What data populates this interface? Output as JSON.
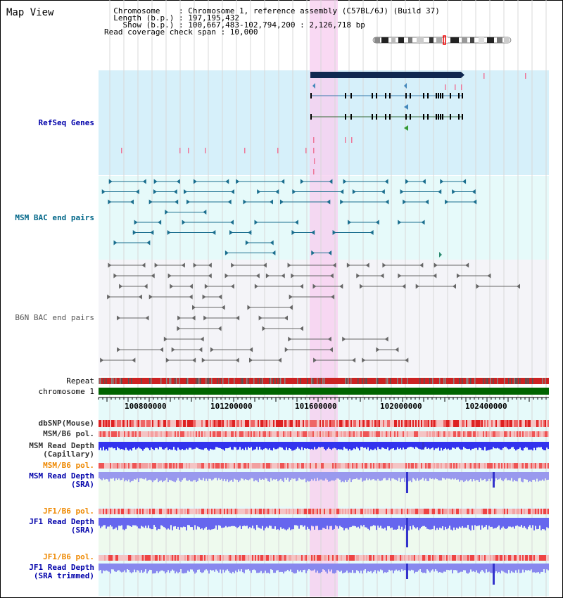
{
  "header": {
    "title": "Map View",
    "info_lines": [
      "  Chromosome    : Chromosome 1, reference assembly (C57BL/6J) (Build 37)",
      "  Length (b.p.) : 197,195,432",
      "    Show (b.p.) : 100,667,483-102,794,200 : 2,126,718 bp",
      "Read coverage check span : 10,000"
    ]
  },
  "tracks": {
    "refseq": "RefSeq Genes",
    "msm_bac": "MSM BAC end pairs",
    "b6n_bac": "B6N BAC end pairs",
    "repeat": "Repeat",
    "chromosome": "chromosome 1",
    "dbsnp": "dbSNP(Mouse)",
    "msm_b6_pol": "MSM/B6 pol.",
    "msm_depth_cap_1": "MSM Read Depth",
    "msm_depth_cap_2": "(Capillary)",
    "msm_b6_pol_2": "MSM/B6 pol.",
    "msm_depth_sra_1": "MSM Read Depth",
    "msm_depth_sra_2": "(SRA)",
    "jf1_pol_1": "JF1/B6 pol.",
    "jf1_depth_sra_1": "JF1 Read Depth",
    "jf1_depth_sra_2": "(SRA)",
    "jf1_pol_2": "JF1/B6 pol.",
    "jf1_depth_trim_1": "JF1 Read Depth",
    "jf1_depth_trim_2": "(SRA trimmed)"
  },
  "axis": {
    "ticks": [
      "100800000",
      "101200000",
      "101600000",
      "102000000",
      "102400000"
    ]
  },
  "colors": {
    "refseq_bg": "#d6f0fa",
    "msm_bg": "#e6fafa",
    "b6n_bg": "#f4f4f8",
    "highlight": "#f8d0f0",
    "chromosome_bar": "#006400",
    "refseq_label": "#0000aa",
    "msm_label": "#006688",
    "b6n_label": "#555555",
    "orange_label": "#ee8800",
    "blue_label": "#0000aa"
  }
}
